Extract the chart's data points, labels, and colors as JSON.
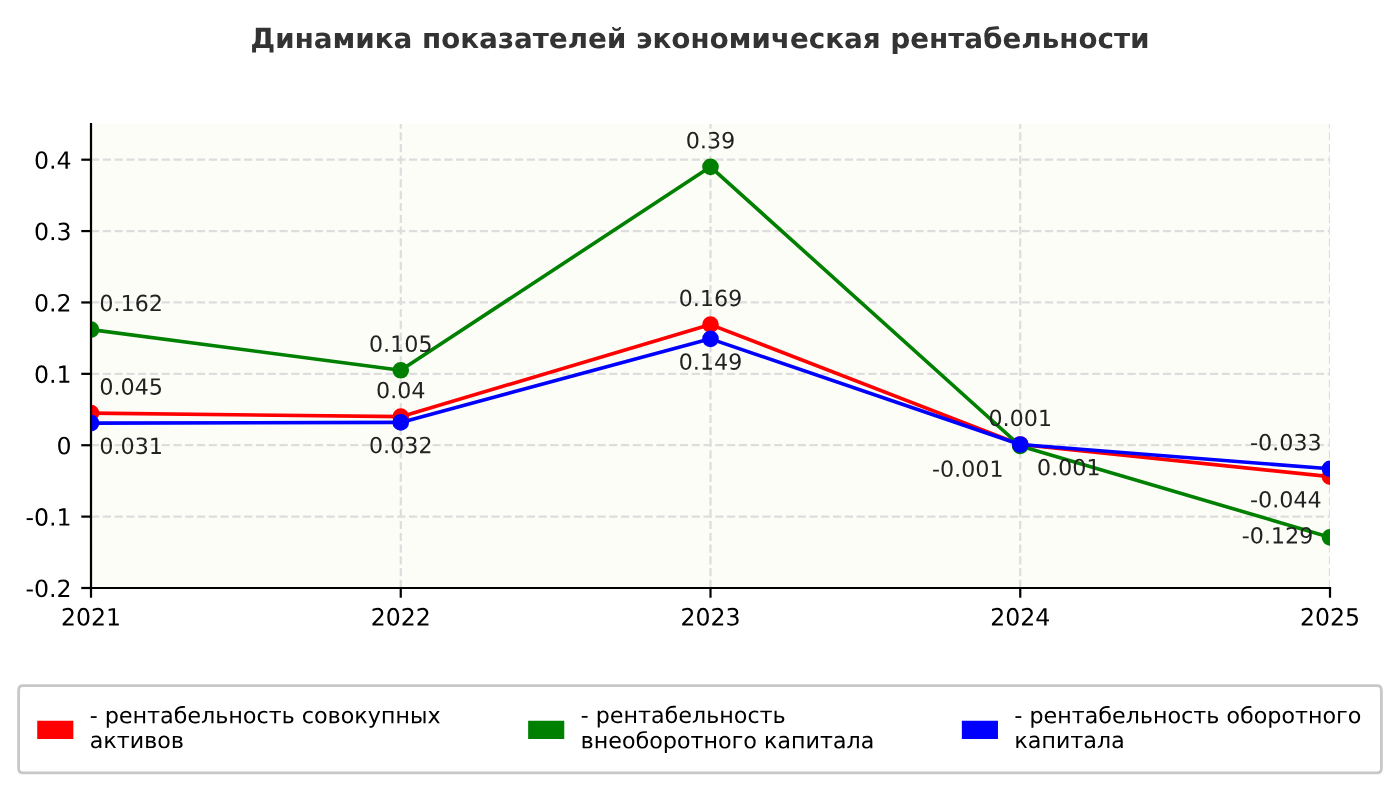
{
  "chart_data": {
    "type": "line",
    "title": "Динамика показателей экономическая рентабельности",
    "categories": [
      "2021",
      "2022",
      "2023",
      "2024",
      "2025"
    ],
    "series": [
      {
        "name": "- рентабельность совокупных активов",
        "color": "#ff0000",
        "values": [
          0.045,
          0.04,
          0.169,
          0.001,
          -0.044
        ]
      },
      {
        "name": "- рентабельность внеоборотного капитала",
        "color": "#008000",
        "values": [
          0.162,
          0.105,
          0.39,
          -0.001,
          -0.129
        ]
      },
      {
        "name": "- рентабельность оборотного капитала",
        "color": "#0000ff",
        "values": [
          0.031,
          0.032,
          0.149,
          0.001,
          -0.033
        ]
      }
    ],
    "ylim": [
      -0.2,
      0.45
    ],
    "yticks": [
      -0.2,
      -0.1,
      0,
      0.1,
      0.2,
      0.3,
      0.4
    ],
    "grid": true,
    "legend": "bottom",
    "marker": "circle",
    "line_style": "solid",
    "data_labels": true
  }
}
